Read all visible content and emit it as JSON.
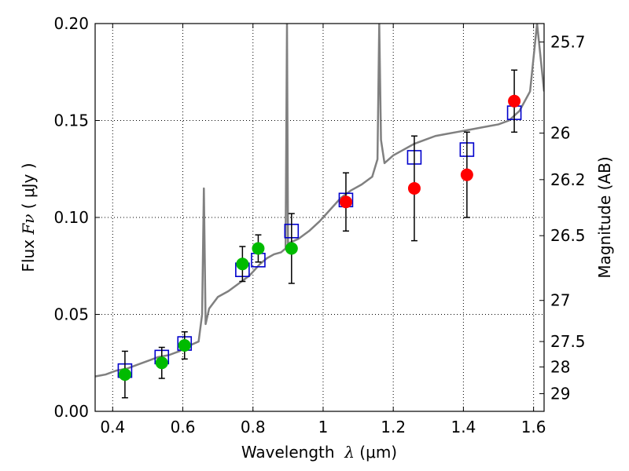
{
  "chart_data": {
    "type": "scatter",
    "xlim": [
      0.35,
      1.63
    ],
    "ylim": [
      0.0,
      0.2
    ],
    "grid": true,
    "x_ticks": [
      {
        "value": 0.4,
        "label": "0.4"
      },
      {
        "value": 0.6,
        "label": "0.6"
      },
      {
        "value": 0.8,
        "label": "0.8"
      },
      {
        "value": 1.0,
        "label": "1"
      },
      {
        "value": 1.2,
        "label": "1.2"
      },
      {
        "value": 1.4,
        "label": "1.4"
      },
      {
        "value": 1.6,
        "label": "1.6"
      }
    ],
    "y_ticks": [
      {
        "value": 0.0,
        "label": "0.00"
      },
      {
        "value": 0.05,
        "label": "0.05"
      },
      {
        "value": 0.1,
        "label": "0.10"
      },
      {
        "value": 0.15,
        "label": "0.15"
      },
      {
        "value": 0.2,
        "label": "0.20"
      }
    ],
    "right_ticks": [
      {
        "flux": 0.1905,
        "label": "25.7"
      },
      {
        "flux": 0.1435,
        "label": "26"
      },
      {
        "flux": 0.1195,
        "label": "26.2"
      },
      {
        "flux": 0.0906,
        "label": "26.5"
      },
      {
        "flux": 0.0572,
        "label": "27"
      },
      {
        "flux": 0.036,
        "label": "27.5"
      },
      {
        "flux": 0.0229,
        "label": "28"
      },
      {
        "flux": 0.0091,
        "label": "29"
      }
    ],
    "xlabel": {
      "prefix": "Wavelength  ",
      "symbol": "λ",
      "suffix": " (μm)"
    },
    "ylabel": {
      "prefix": "Flux  ",
      "symbol": "Fν",
      "suffix": "  ( μJy )"
    },
    "y2label": "Magnitude (AB)",
    "colors": {
      "spectrum": "#808080",
      "model": "#0000cc",
      "optical": "#00bb00",
      "nir": "#ff0000",
      "errorbar": "#000000"
    },
    "series": [
      {
        "name": "model-spectrum",
        "kind": "line",
        "x": [
          0.35,
          0.38,
          0.41,
          0.44,
          0.47,
          0.5,
          0.53,
          0.56,
          0.59,
          0.62,
          0.645,
          0.655,
          0.66,
          0.665,
          0.675,
          0.7,
          0.73,
          0.76,
          0.79,
          0.82,
          0.84,
          0.86,
          0.88,
          0.893,
          0.897,
          0.9,
          0.905,
          0.93,
          0.96,
          0.99,
          1.02,
          1.05,
          1.08,
          1.11,
          1.14,
          1.155,
          1.16,
          1.165,
          1.175,
          1.2,
          1.23,
          1.26,
          1.29,
          1.32,
          1.35,
          1.38,
          1.41,
          1.44,
          1.47,
          1.5,
          1.53,
          1.56,
          1.59,
          1.61,
          1.63
        ],
        "y": [
          0.018,
          0.019,
          0.021,
          0.022,
          0.024,
          0.026,
          0.028,
          0.029,
          0.031,
          0.034,
          0.036,
          0.05,
          0.115,
          0.045,
          0.053,
          0.059,
          0.062,
          0.066,
          0.07,
          0.076,
          0.079,
          0.081,
          0.082,
          0.084,
          0.2,
          0.085,
          0.087,
          0.089,
          0.093,
          0.098,
          0.104,
          0.11,
          0.114,
          0.117,
          0.121,
          0.13,
          0.2,
          0.14,
          0.128,
          0.132,
          0.135,
          0.138,
          0.14,
          0.142,
          0.143,
          0.144,
          0.145,
          0.146,
          0.147,
          0.148,
          0.15,
          0.155,
          0.165,
          0.2,
          0.165
        ]
      },
      {
        "name": "model-photometry",
        "kind": "square",
        "x": [
          0.435,
          0.54,
          0.605,
          0.77,
          0.815,
          0.91,
          1.065,
          1.26,
          1.41,
          1.545
        ],
        "y": [
          0.021,
          0.028,
          0.035,
          0.073,
          0.078,
          0.093,
          0.109,
          0.131,
          0.135,
          0.154
        ]
      },
      {
        "name": "optical-observations",
        "kind": "circle",
        "x": [
          0.435,
          0.54,
          0.605,
          0.77,
          0.815,
          0.91
        ],
        "y": [
          0.019,
          0.025,
          0.034,
          0.076,
          0.084,
          0.084
        ],
        "yerr": [
          0.012,
          0.008,
          0.007,
          0.009,
          0.007,
          0.018
        ]
      },
      {
        "name": "nir-observations",
        "kind": "circle",
        "x": [
          1.065,
          1.26,
          1.41,
          1.545
        ],
        "y": [
          0.108,
          0.115,
          0.122,
          0.16
        ],
        "yerr": [
          0.015,
          0.027,
          0.022,
          0.016
        ]
      }
    ]
  }
}
